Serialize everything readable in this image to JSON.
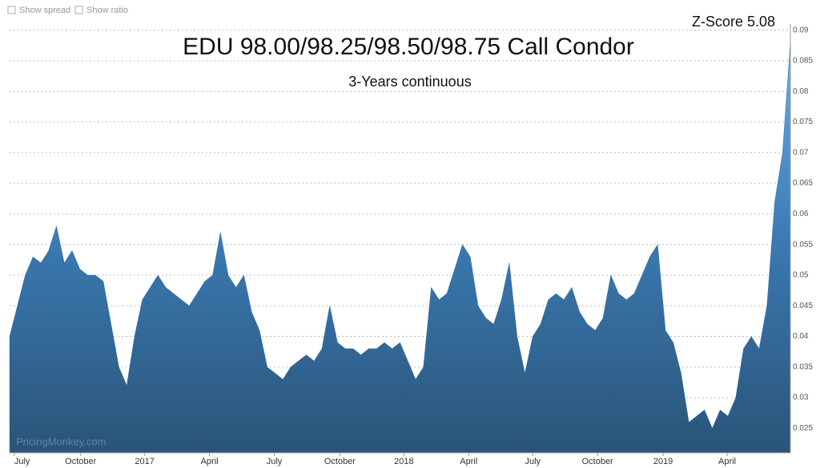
{
  "controls": {
    "spread": "Show spread",
    "ratio": "Show ratio"
  },
  "watermark": "PricingMonkey.com",
  "chart_data": {
    "type": "area",
    "title": "EDU 98.00/98.25/98.50/98.75 Call Condor",
    "subtitle": "3-Years continuous",
    "annotation": "Z-Score 5.08",
    "color": "#3a78b0",
    "grid": true,
    "values": [
      0.04,
      0.045,
      0.05,
      0.053,
      0.052,
      0.054,
      0.058,
      0.052,
      0.054,
      0.051,
      0.05,
      0.05,
      0.049,
      0.042,
      0.035,
      0.032,
      0.04,
      0.046,
      0.048,
      0.05,
      0.048,
      0.047,
      0.046,
      0.045,
      0.047,
      0.049,
      0.05,
      0.057,
      0.05,
      0.048,
      0.05,
      0.044,
      0.041,
      0.035,
      0.034,
      0.033,
      0.035,
      0.036,
      0.037,
      0.036,
      0.038,
      0.045,
      0.039,
      0.038,
      0.038,
      0.037,
      0.038,
      0.038,
      0.039,
      0.038,
      0.039,
      0.036,
      0.033,
      0.035,
      0.048,
      0.046,
      0.047,
      0.051,
      0.055,
      0.053,
      0.045,
      0.043,
      0.042,
      0.046,
      0.052,
      0.04,
      0.034,
      0.04,
      0.042,
      0.046,
      0.047,
      0.046,
      0.048,
      0.044,
      0.042,
      0.041,
      0.043,
      0.05,
      0.047,
      0.046,
      0.047,
      0.05,
      0.053,
      0.055,
      0.041,
      0.039,
      0.034,
      0.026,
      0.027,
      0.028,
      0.025,
      0.028,
      0.027,
      0.03,
      0.038,
      0.04,
      0.038,
      0.045,
      0.062,
      0.07,
      0.088
    ],
    "xlim": [
      0,
      100
    ],
    "xticks": [
      {
        "value": 0.6,
        "label": "July"
      },
      {
        "value": 9.1,
        "label": "October"
      },
      {
        "value": 17.3,
        "label": "2017"
      },
      {
        "value": 25.6,
        "label": "April"
      },
      {
        "value": 33.9,
        "label": "July"
      },
      {
        "value": 42.3,
        "label": "October"
      },
      {
        "value": 50.5,
        "label": "2018"
      },
      {
        "value": 58.8,
        "label": "April"
      },
      {
        "value": 67.0,
        "label": "July"
      },
      {
        "value": 75.3,
        "label": "October"
      },
      {
        "value": 83.7,
        "label": "2019"
      },
      {
        "value": 91.9,
        "label": "April"
      }
    ],
    "ylim": [
      0.021,
      0.091
    ],
    "yticks": [
      0.025,
      0.03,
      0.035,
      0.04,
      0.045,
      0.05,
      0.055,
      0.06,
      0.065,
      0.07,
      0.075,
      0.08,
      0.085,
      0.09
    ]
  }
}
